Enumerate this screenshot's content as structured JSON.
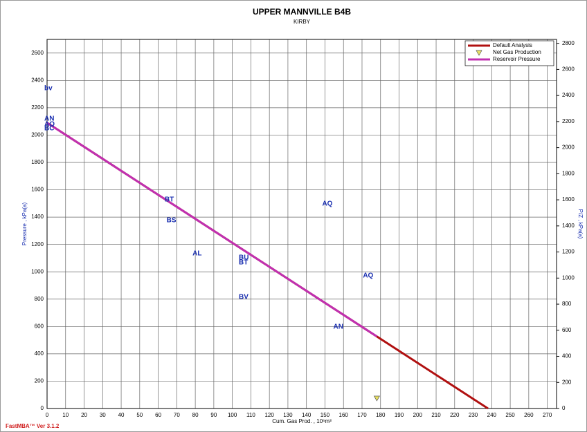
{
  "chart_data": {
    "type": "line",
    "title": "UPPER MANNVILLE B4B",
    "subtitle": "KIRBY",
    "x_label": "Cum. Gas Prod. , 10⁶m³",
    "y_label": "Pressure , kPa(a)",
    "y2_label": "P/Z , kPa(a)",
    "footer": "FastMBA™ Ver 3.1.2",
    "xlim": [
      0,
      275
    ],
    "ylim": [
      0,
      2700
    ],
    "y2lim": [
      0,
      2830
    ],
    "xticks": [
      0,
      10,
      20,
      30,
      40,
      50,
      60,
      70,
      80,
      90,
      100,
      110,
      120,
      130,
      140,
      150,
      160,
      170,
      180,
      190,
      200,
      210,
      220,
      230,
      240,
      250,
      260,
      270
    ],
    "yticks": [
      0,
      200,
      400,
      600,
      800,
      1000,
      1200,
      1400,
      1600,
      1800,
      2000,
      2200,
      2400,
      2600
    ],
    "y2ticks": [
      0,
      200,
      400,
      600,
      800,
      1000,
      1200,
      1400,
      1600,
      1800,
      2000,
      2200,
      2400,
      2600,
      2800
    ],
    "grid": true,
    "legend": "top-right",
    "series": [
      {
        "name": "Default Analysis",
        "color": "#b01010",
        "x": [
          0,
          238
        ],
        "values": [
          2090,
          0
        ]
      },
      {
        "name": "Net Gas Production",
        "color": "#e8e060",
        "marker": "triangle",
        "x": [
          178
        ],
        "values": [
          76
        ]
      },
      {
        "name": "Reservoir Pressure",
        "color": "#c030b0",
        "x": [
          0,
          178
        ],
        "values": [
          2090,
          527
        ]
      }
    ],
    "annotations": [
      {
        "text": "bv",
        "x": 0,
        "y": 2342
      },
      {
        "text": "AN",
        "x": 0,
        "y": 2119
      },
      {
        "text": "AO",
        "x": 0,
        "y": 2079
      },
      {
        "text": "BC",
        "x": 0,
        "y": 2049
      },
      {
        "text": "BT",
        "x": 65,
        "y": 1528
      },
      {
        "text": "BS",
        "x": 66,
        "y": 1376
      },
      {
        "text": "AL",
        "x": 80,
        "y": 1133
      },
      {
        "text": "BU",
        "x": 105,
        "y": 1103
      },
      {
        "text": "BT",
        "x": 105,
        "y": 1067
      },
      {
        "text": "BV",
        "x": 105,
        "y": 814
      },
      {
        "text": "AQ",
        "x": 150,
        "y": 1497
      },
      {
        "text": "AQ",
        "x": 172,
        "y": 971
      },
      {
        "text": "AN",
        "x": 156,
        "y": 597
      }
    ]
  }
}
